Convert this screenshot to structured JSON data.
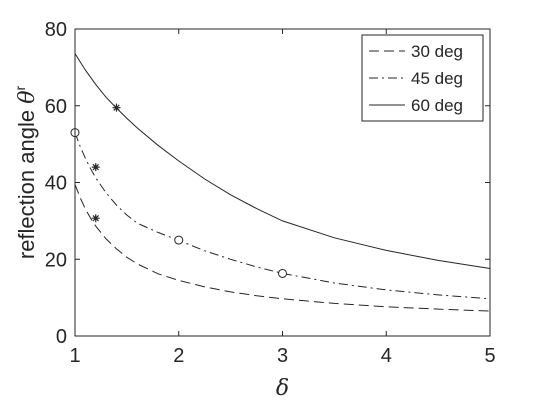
{
  "chart_data": {
    "type": "line",
    "title": "",
    "xlabel": "δ",
    "ylabel": {
      "text": "reflection angle ",
      "symbol": "θ",
      "superscript": "r"
    },
    "xlim": [
      1,
      5
    ],
    "ylim": [
      0,
      80
    ],
    "xticks": [
      "1",
      "2",
      "3",
      "4",
      "5"
    ],
    "yticks": [
      "0",
      "20",
      "40",
      "60",
      "80"
    ],
    "grid": false,
    "legend_position": "top-right",
    "series": [
      {
        "name": "30 deg",
        "style": "dashed",
        "color": "#262626",
        "x": [
          1.0,
          1.05,
          1.1,
          1.15,
          1.2,
          1.3,
          1.4,
          1.5,
          1.6,
          1.8,
          2.0,
          2.25,
          2.5,
          2.75,
          3.0,
          3.5,
          4.0,
          4.5,
          5.0
        ],
        "y": [
          39.5,
          36.0,
          33.1,
          30.7,
          28.6,
          25.3,
          22.7,
          20.5,
          18.8,
          16.2,
          14.5,
          12.8,
          11.5,
          10.5,
          9.7,
          8.5,
          7.6,
          7.0,
          6.5
        ]
      },
      {
        "name": "45 deg",
        "style": "dash-dot",
        "color": "#262626",
        "x": [
          1.0,
          1.05,
          1.1,
          1.15,
          1.2,
          1.3,
          1.4,
          1.5,
          1.6,
          1.8,
          2.0,
          2.25,
          2.5,
          2.75,
          3.0,
          3.5,
          4.0,
          4.5,
          5.0
        ],
        "y": [
          53.0,
          49.4,
          46.3,
          43.6,
          41.2,
          37.3,
          34.1,
          31.5,
          29.4,
          27.0,
          24.9,
          22.2,
          20.0,
          18.0,
          16.3,
          13.8,
          12.0,
          10.7,
          9.7
        ]
      },
      {
        "name": "60 deg",
        "style": "solid",
        "color": "#262626",
        "x": [
          1.0,
          1.1,
          1.2,
          1.3,
          1.4,
          1.5,
          1.6,
          1.8,
          2.0,
          2.25,
          2.5,
          2.75,
          3.0,
          3.5,
          4.0,
          4.5,
          5.0
        ],
        "y": [
          73.6,
          69.3,
          65.5,
          62.2,
          59.4,
          56.7,
          54.2,
          49.7,
          45.6,
          40.9,
          36.8,
          33.2,
          30.0,
          25.6,
          22.3,
          19.7,
          17.6
        ]
      }
    ],
    "markers": [
      {
        "symbol": "star",
        "x": 1.2,
        "y": 30.7
      },
      {
        "symbol": "star",
        "x": 1.2,
        "y": 44.0
      },
      {
        "symbol": "star",
        "x": 1.4,
        "y": 59.5
      },
      {
        "symbol": "circle",
        "x": 1.0,
        "y": 53.0
      },
      {
        "symbol": "circle",
        "x": 2.0,
        "y": 25.0
      },
      {
        "symbol": "circle",
        "x": 3.0,
        "y": 16.3
      }
    ]
  }
}
